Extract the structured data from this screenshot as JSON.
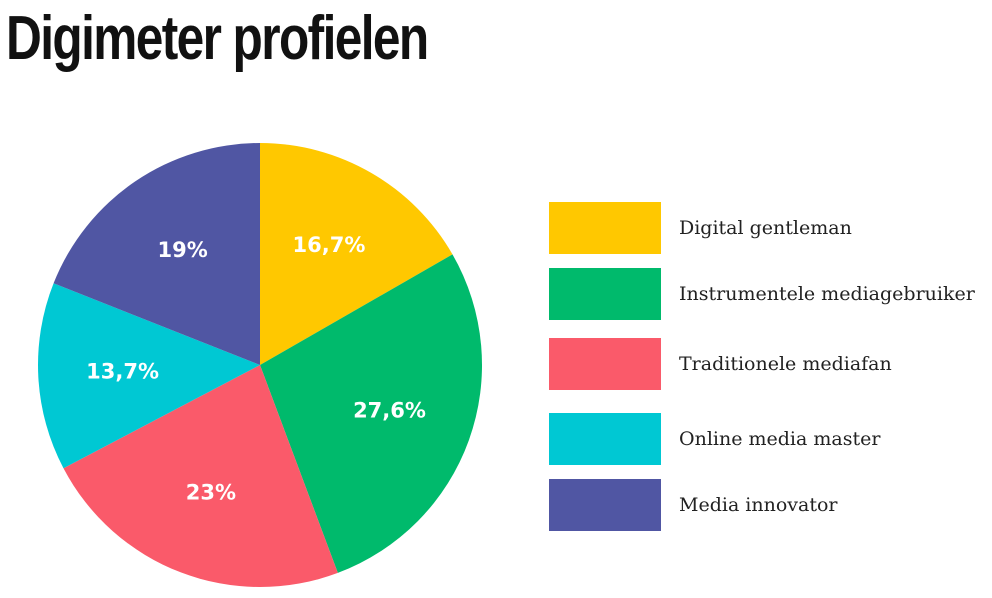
{
  "title": "Digimeter profielen",
  "chart_data": {
    "type": "pie",
    "title": "Digimeter profielen",
    "slices": [
      {
        "name": "Digital gentleman",
        "value": 16.7,
        "label": "16,7%",
        "color": "#FFC800"
      },
      {
        "name": "Instrumentele mediagebruiker",
        "value": 27.6,
        "label": "27,6%",
        "color": "#00BA6C"
      },
      {
        "name": "Traditionele mediafan",
        "value": 23,
        "label": "23%",
        "color": "#FA5A6A"
      },
      {
        "name": "Online media master",
        "value": 13.7,
        "label": "13,7%",
        "color": "#00C8D3"
      },
      {
        "name": "Media innovator",
        "value": 19,
        "label": "19%",
        "color": "#5056A3"
      }
    ],
    "legend_position": "right",
    "start_angle": "12 o'clock",
    "direction": "clockwise"
  }
}
